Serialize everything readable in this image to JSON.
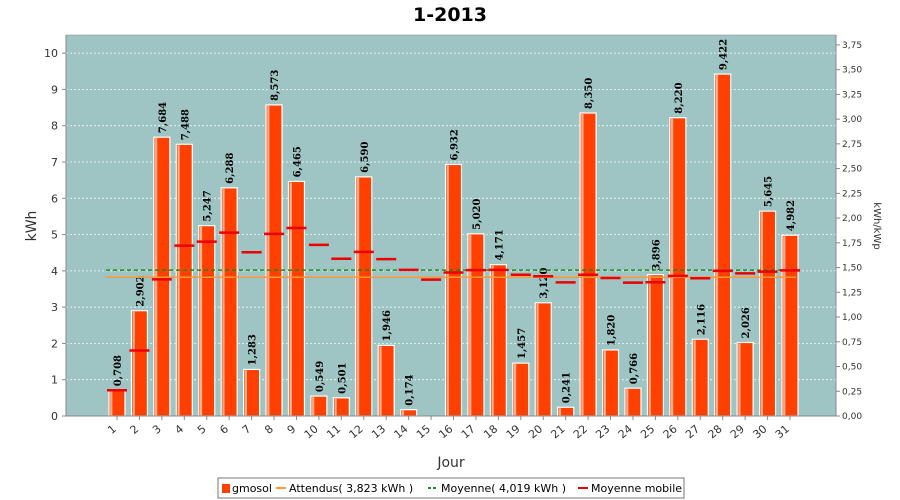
{
  "chart_data": {
    "type": "bar",
    "title": "1-2013",
    "xlabel": "Jour",
    "ylabel": "kWh",
    "y2label": "kWh/kWp",
    "ylim": [
      0,
      10.5
    ],
    "y2lim": [
      0,
      3.85
    ],
    "grid": true,
    "legend_position": "bottom",
    "categories": [
      "1",
      "2",
      "3",
      "4",
      "5",
      "6",
      "7",
      "8",
      "9",
      "10",
      "11",
      "12",
      "13",
      "14",
      "15",
      "16",
      "17",
      "18",
      "19",
      "20",
      "21",
      "22",
      "23",
      "24",
      "25",
      "26",
      "27",
      "28",
      "29",
      "30",
      "31"
    ],
    "y_ticks": [
      "0",
      "1",
      "2",
      "3",
      "4",
      "5",
      "6",
      "7",
      "8",
      "9",
      "10"
    ],
    "y2_ticks": [
      "0,00",
      "0,25",
      "0,50",
      "0,75",
      "1,00",
      "1,25",
      "1,50",
      "1,75",
      "2,00",
      "2,25",
      "2,50",
      "2,75",
      "3,00",
      "3,25",
      "3,50",
      "3,75"
    ],
    "series": [
      {
        "name": "gmosol",
        "kind": "bar",
        "color": "#ff4000",
        "values": [
          0.708,
          2.902,
          7.684,
          7.488,
          5.247,
          6.288,
          1.283,
          8.573,
          6.465,
          0.549,
          0.501,
          6.59,
          1.946,
          0.174,
          0,
          6.932,
          5.02,
          4.171,
          1.457,
          3.12,
          0.241,
          8.35,
          1.82,
          0.766,
          3.896,
          8.22,
          2.116,
          9.422,
          2.026,
          5.645,
          4.982
        ],
        "labels": [
          "0,708",
          "2,902",
          "7,684",
          "7,488",
          "5,247",
          "6,288",
          "1,283",
          "8,573",
          "6,465",
          "0,549",
          "0,501",
          "6,590",
          "1,946",
          "0,174",
          "",
          "6,932",
          "5,020",
          "4,171",
          "1,457",
          "3,120",
          "0,241",
          "8,350",
          "1,820",
          "0,766",
          "3,896",
          "8,220",
          "2,116",
          "9,422",
          "2,026",
          "5,645",
          "4,982"
        ]
      },
      {
        "name": "Attendus( 3,823 kWh )",
        "kind": "line",
        "color": "#ff9933",
        "value": 3.823
      },
      {
        "name": "Moyenne( 4,019 kWh )",
        "kind": "dashed-line",
        "color": "#1a8a1a",
        "value": 4.019
      },
      {
        "name": "Moyenne mobile",
        "kind": "markers",
        "color": "#ee0000",
        "values": [
          0.708,
          1.805,
          3.765,
          4.696,
          4.806,
          5.052,
          4.513,
          5.02,
          5.18,
          4.717,
          4.334,
          4.522,
          4.324,
          4.027,
          3.759,
          3.956,
          4.019,
          4.027,
          3.892,
          3.853,
          3.681,
          3.893,
          3.803,
          3.677,
          3.686,
          3.86,
          3.795,
          4.0,
          3.932,
          3.98,
          4.012
        ]
      }
    ]
  }
}
